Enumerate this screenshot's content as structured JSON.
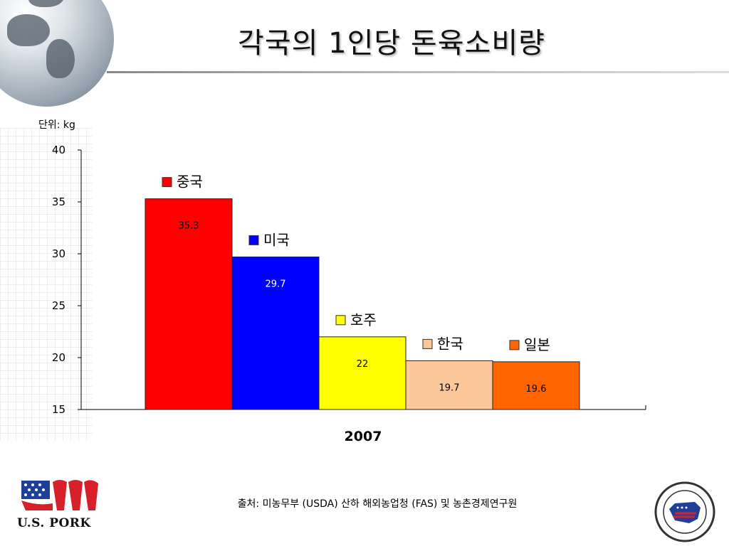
{
  "title": "각국의 1인당 돈육소비량",
  "unit_label": "단위: kg",
  "source": "출처: 미농무부 (USDA) 산하 해외농업청 (FAS) 및 농촌경제연구원",
  "logos": {
    "left": "U.S. PORK",
    "right": "U.S. MEAT EXPORT FEDERATION"
  },
  "chart_data": {
    "type": "bar",
    "title": "각국의 1인당 돈육소비량",
    "xlabel": "2007",
    "ylabel": "단위: kg",
    "ylim": [
      15,
      40
    ],
    "yticks": [
      15,
      20,
      25,
      30,
      35,
      40
    ],
    "grid": false,
    "categories": [
      "2007"
    ],
    "series": [
      {
        "name": "중국",
        "values": [
          35.3
        ],
        "label": "35.3",
        "color": "#ff0000"
      },
      {
        "name": "미국",
        "values": [
          29.7
        ],
        "label": "29.7",
        "color": "#0000ff"
      },
      {
        "name": "호주",
        "values": [
          22.0
        ],
        "label": "22",
        "color": "#ffff00"
      },
      {
        "name": "한국",
        "values": [
          19.7
        ],
        "label": "19.7",
        "color": "#fcc89a"
      },
      {
        "name": "일본",
        "values": [
          19.6
        ],
        "label": "19.6",
        "color": "#ff6600"
      }
    ]
  }
}
